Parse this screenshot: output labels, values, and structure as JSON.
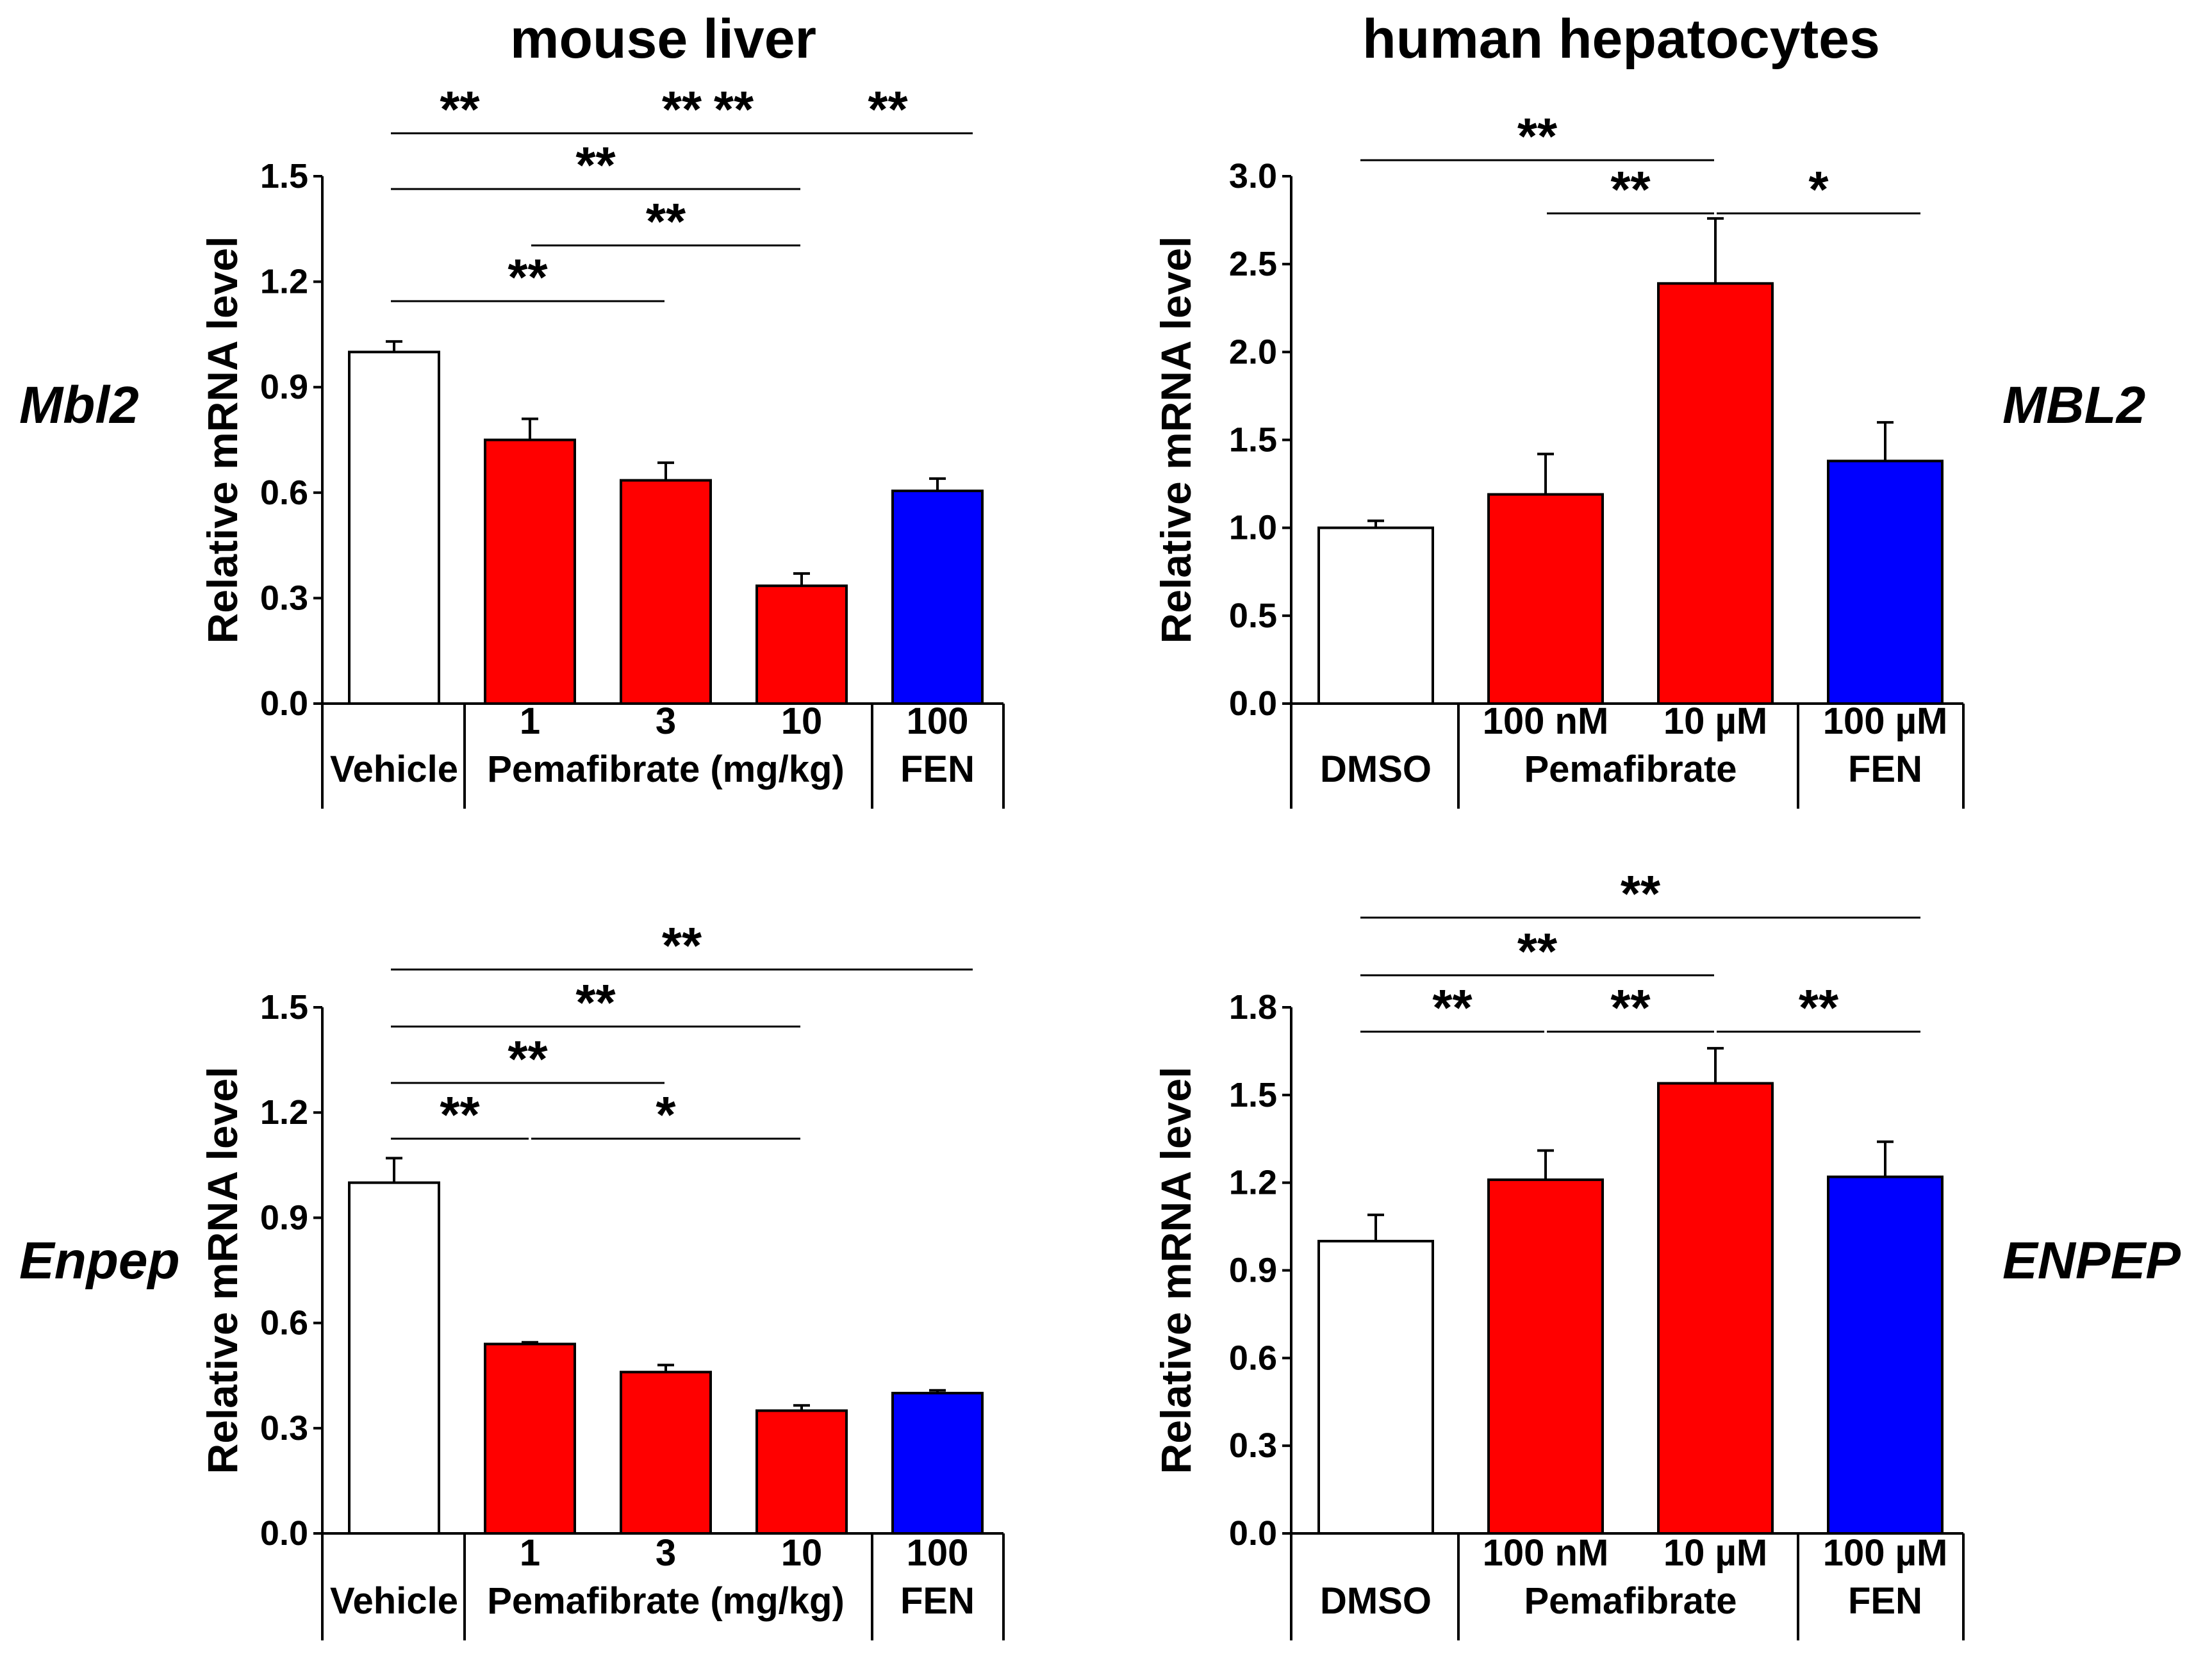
{
  "column_titles": {
    "mouse": "mouse liver",
    "human": "human hepatocytes"
  },
  "colors": {
    "vehicle": "#ffffff",
    "pemafibrate": "#ff0000",
    "fenofibrate": "#0000ff",
    "axis": "#000000"
  },
  "chart_data": [
    {
      "id": "mouse-mbl2",
      "type": "bar",
      "gene_label": "Mbl2",
      "gene_italic": true,
      "ylabel": "Relative mRNA level",
      "ylim": [
        0,
        1.5
      ],
      "yticks": [
        "0.0",
        "0.3",
        "0.6",
        "0.9",
        "1.2",
        "1.5"
      ],
      "categories": [
        "Vehicle",
        "1",
        "3",
        "10",
        "100"
      ],
      "values": [
        1.0,
        0.75,
        0.635,
        0.335,
        0.605
      ],
      "errors": [
        0.03,
        0.06,
        0.05,
        0.035,
        0.035
      ],
      "colors": [
        "#ffffff",
        "#ff0000",
        "#ff0000",
        "#ff0000",
        "#0000ff"
      ],
      "group_labels": [
        {
          "text": "Vehicle",
          "from": 0,
          "to": 0
        },
        {
          "text": "Pemafibrate (mg/kg)",
          "from": 1,
          "to": 3
        },
        {
          "text": "FEN",
          "from": 4,
          "to": 4
        }
      ],
      "significance": [
        {
          "from": 0,
          "to": 4,
          "label": "**"
        },
        {
          "from": 0,
          "to": 3,
          "label": "**"
        },
        {
          "from": 0,
          "to": 2,
          "label": "**"
        },
        {
          "from": 2,
          "to": 3,
          "label": "**"
        },
        {
          "from": 0,
          "to": 1,
          "label": "**"
        },
        {
          "from": 1,
          "to": 3,
          "label": "**"
        },
        {
          "from": 3,
          "to": 4,
          "label": "**"
        }
      ]
    },
    {
      "id": "human-mbl2",
      "type": "bar",
      "gene_label": "MBL2",
      "gene_italic": true,
      "ylabel": "Relative mRNA level",
      "ylim": [
        0,
        3.0
      ],
      "yticks": [
        "0.0",
        "0.5",
        "1.0",
        "1.5",
        "2.0",
        "2.5",
        "3.0"
      ],
      "categories": [
        "DMSO",
        "100 nM",
        "10 µM",
        "100 µM"
      ],
      "values": [
        1.0,
        1.19,
        2.39,
        1.38
      ],
      "errors": [
        0.04,
        0.23,
        0.37,
        0.22
      ],
      "colors": [
        "#ffffff",
        "#ff0000",
        "#ff0000",
        "#0000ff"
      ],
      "group_labels": [
        {
          "text": "DMSO",
          "from": 0,
          "to": 0
        },
        {
          "text": "Pemafibrate",
          "from": 1,
          "to": 2
        },
        {
          "text": "FEN",
          "from": 3,
          "to": 3
        }
      ],
      "significance": [
        {
          "from": 0,
          "to": 2,
          "label": "**"
        },
        {
          "from": 1,
          "to": 2,
          "label": "**"
        },
        {
          "from": 2,
          "to": 3,
          "label": "*"
        }
      ]
    },
    {
      "id": "mouse-enpep",
      "type": "bar",
      "gene_label": "Enpep",
      "gene_italic": true,
      "ylabel": "Relative mRNA level",
      "ylim": [
        0,
        1.5
      ],
      "yticks": [
        "0.0",
        "0.3",
        "0.6",
        "0.9",
        "1.2",
        "1.5"
      ],
      "categories": [
        "Vehicle",
        "1",
        "3",
        "10",
        "100"
      ],
      "values": [
        1.0,
        0.54,
        0.46,
        0.35,
        0.4
      ],
      "errors": [
        0.07,
        0.005,
        0.02,
        0.015,
        0.008
      ],
      "colors": [
        "#ffffff",
        "#ff0000",
        "#ff0000",
        "#ff0000",
        "#0000ff"
      ],
      "group_labels": [
        {
          "text": "Vehicle",
          "from": 0,
          "to": 0
        },
        {
          "text": "Pemafibrate (mg/kg)",
          "from": 1,
          "to": 3
        },
        {
          "text": "FEN",
          "from": 4,
          "to": 4
        }
      ],
      "significance": [
        {
          "from": 0,
          "to": 4,
          "label": "**"
        },
        {
          "from": 0,
          "to": 3,
          "label": "**"
        },
        {
          "from": 0,
          "to": 2,
          "label": "**"
        },
        {
          "from": 0,
          "to": 1,
          "label": "**"
        },
        {
          "from": 1,
          "to": 3,
          "label": "*"
        }
      ]
    },
    {
      "id": "human-enpep",
      "type": "bar",
      "gene_label": "ENPEP",
      "gene_italic": true,
      "ylabel": "Relative mRNA level",
      "ylim": [
        0,
        1.8
      ],
      "yticks": [
        "0.0",
        "0.3",
        "0.6",
        "0.9",
        "1.2",
        "1.5",
        "1.8"
      ],
      "categories": [
        "DMSO",
        "100 nM",
        "10 µM",
        "100 µM"
      ],
      "values": [
        1.0,
        1.21,
        1.54,
        1.22
      ],
      "errors": [
        0.09,
        0.1,
        0.12,
        0.12
      ],
      "colors": [
        "#ffffff",
        "#ff0000",
        "#ff0000",
        "#0000ff"
      ],
      "group_labels": [
        {
          "text": "DMSO",
          "from": 0,
          "to": 0
        },
        {
          "text": "Pemafibrate",
          "from": 1,
          "to": 2
        },
        {
          "text": "FEN",
          "from": 3,
          "to": 3
        }
      ],
      "significance": [
        {
          "from": 0,
          "to": 3,
          "label": "**"
        },
        {
          "from": 0,
          "to": 2,
          "label": "**"
        },
        {
          "from": 0,
          "to": 1,
          "label": "**"
        },
        {
          "from": 1,
          "to": 2,
          "label": "**"
        },
        {
          "from": 2,
          "to": 3,
          "label": "**"
        }
      ]
    }
  ]
}
